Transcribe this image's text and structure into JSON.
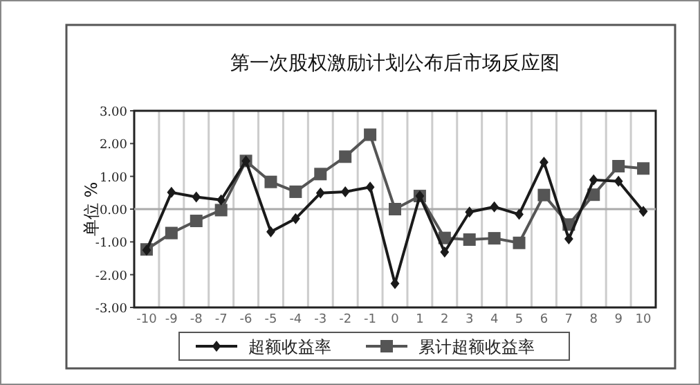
{
  "chart_data": {
    "type": "line",
    "title": "第一次股权激励计划公布后市场反应图",
    "ylabel": "单位 %",
    "categories": [
      "-10",
      "-9",
      "-8",
      "-7",
      "-6",
      "-5",
      "-4",
      "-3",
      "-2",
      "-1",
      "0",
      "1",
      "2",
      "3",
      "4",
      "5",
      "6",
      "7",
      "8",
      "9",
      "10"
    ],
    "series": [
      {
        "name": "超额收益率",
        "color": "#1a1a1a",
        "marker": "diamond",
        "values": [
          -1.25,
          0.51,
          0.37,
          0.28,
          1.47,
          -0.69,
          -0.29,
          0.49,
          0.53,
          0.67,
          -2.27,
          0.4,
          -1.31,
          -0.09,
          0.07,
          -0.16,
          1.43,
          -0.91,
          0.89,
          0.85,
          -0.07
        ]
      },
      {
        "name": "累计超额收益率",
        "color": "#555555",
        "marker": "square",
        "values": [
          -1.23,
          -0.73,
          -0.36,
          -0.03,
          1.47,
          0.83,
          0.53,
          1.07,
          1.6,
          2.27,
          0.0,
          0.4,
          -0.88,
          -0.93,
          -0.89,
          -1.03,
          0.43,
          -0.47,
          0.44,
          1.31,
          1.24
        ]
      }
    ],
    "ylim": [
      -3,
      3
    ],
    "yticks": [
      {
        "value": -3,
        "label": "-3.00"
      },
      {
        "value": -2,
        "label": "-2.00"
      },
      {
        "value": -1,
        "label": "-1.00"
      },
      {
        "value": 0,
        "label": "0.00"
      },
      {
        "value": 1,
        "label": "1.00"
      },
      {
        "value": 2,
        "label": "2.00"
      },
      {
        "value": 3,
        "label": "3.00"
      }
    ],
    "grid": "x",
    "legend": "bottom",
    "line_style": "solid"
  }
}
